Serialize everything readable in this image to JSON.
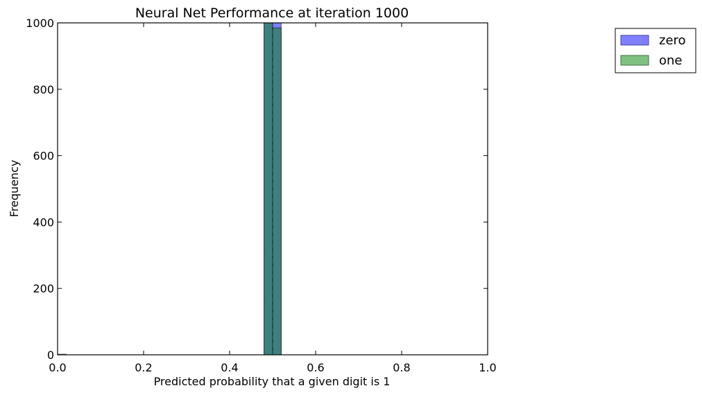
{
  "chart_data": {
    "type": "bar",
    "title": "Neural Net Performance at iteration 1000",
    "xlabel": "Predicted probability that a given digit is 1",
    "ylabel": "Frequency",
    "xlim": [
      0.0,
      1.0
    ],
    "ylim": [
      0,
      1000
    ],
    "xticks": [
      "0.0",
      "0.2",
      "0.4",
      "0.6",
      "0.8",
      "1.0"
    ],
    "yticks": [
      "0",
      "200",
      "400",
      "600",
      "800",
      "1000"
    ],
    "threshold_line_x": 0.5,
    "legend_position": "outside-top-right",
    "grid": false,
    "series": [
      {
        "name": "zero",
        "color": "#0000ff",
        "bins": [
          {
            "x0": 0.0,
            "x1": 0.02,
            "value": 2
          },
          {
            "x0": 0.48,
            "x1": 0.5,
            "value": 1000
          },
          {
            "x0": 0.5,
            "x1": 0.52,
            "value": 1000
          }
        ]
      },
      {
        "name": "one",
        "color": "#008000",
        "bins": [
          {
            "x0": 0.48,
            "x1": 0.5,
            "value": 1000
          },
          {
            "x0": 0.5,
            "x1": 0.52,
            "value": 985
          }
        ]
      }
    ]
  }
}
